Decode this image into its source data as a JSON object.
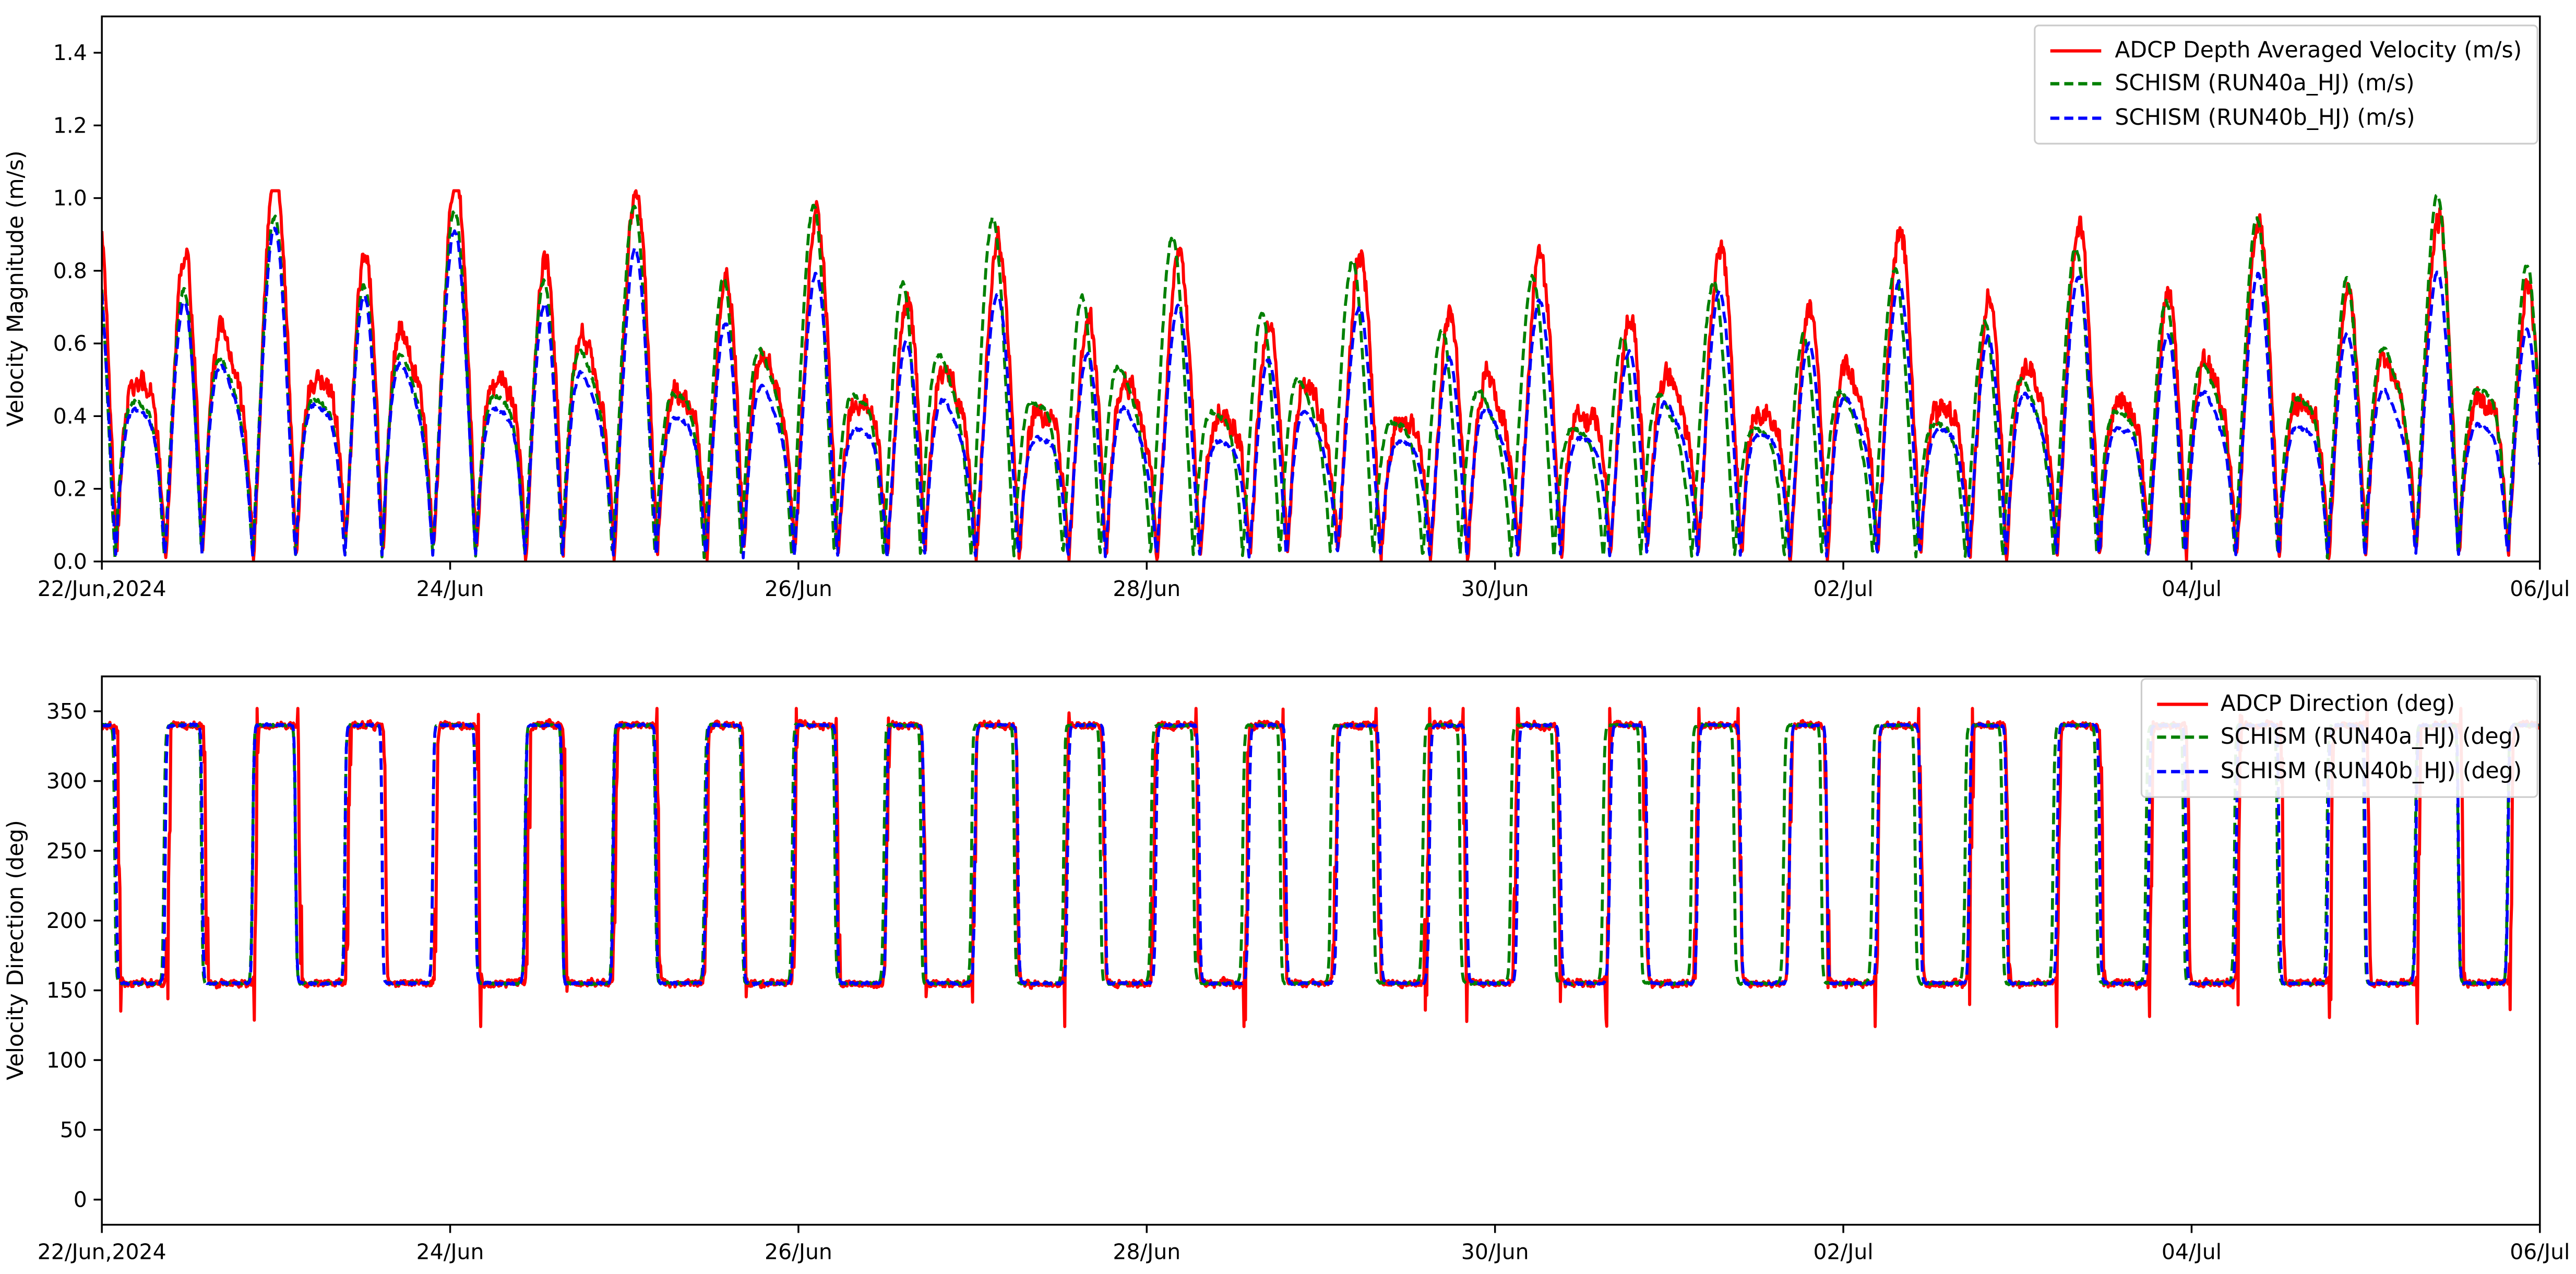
{
  "page": {
    "background": "#ffffff"
  },
  "colors": {
    "adcp": "#ff0000",
    "run40a": "#008000",
    "run40b": "#0000ff",
    "axis": "#000000",
    "legend_border": "#cccccc"
  },
  "chart_data": [
    {
      "id": "velocity-magnitude",
      "type": "line",
      "title": "",
      "xlabel": "",
      "ylabel": "Velocity Magnitude (m/s)",
      "ylim": [
        0.0,
        1.5
      ],
      "yticks": [
        0.0,
        0.2,
        0.4,
        0.6,
        0.8,
        1.0,
        1.2,
        1.4
      ],
      "ytick_labels": [
        "0.0",
        "0.2",
        "0.4",
        "0.6",
        "0.8",
        "1.0",
        "1.2",
        "1.4"
      ],
      "x_days": 14,
      "xticks_days": [
        0,
        2,
        4,
        6,
        8,
        10,
        12,
        14
      ],
      "xtick_labels": [
        "22/Jun,2024",
        "24/Jun",
        "26/Jun",
        "28/Jun",
        "30/Jun",
        "02/Jul",
        "04/Jul",
        "06/Jul"
      ],
      "grid": false,
      "legend_position": "upper right",
      "legend": [
        {
          "label": "ADCP Depth Averaged Velocity (m/s)",
          "color": "#ff0000",
          "dash": "solid"
        },
        {
          "label": "SCHISM (RUN40a_HJ) (m/s)",
          "color": "#008000",
          "dash": "dashed"
        },
        {
          "label": "SCHISM (RUN40b_HJ) (m/s)",
          "color": "#0000ff",
          "dash": "dashed"
        }
      ],
      "signal": {
        "kind": "semidiurnal_tidal_current_magnitude",
        "tidal_period_hours": 12.42,
        "duration_hours": 336,
        "peak_velocity_range_ms": [
          0.45,
          0.98
        ],
        "slack_velocity_ms": 0.02,
        "series": [
          {
            "name": "ADCP Depth Averaged Velocity",
            "amplitude_scale": 1.0,
            "phase_offset": 0.0,
            "noise_level": 0.028,
            "seed": 7
          },
          {
            "name": "SCHISM RUN40a_HJ",
            "amplitude_scale": 0.97,
            "phase_offset": 0.3,
            "noise_level": 0.006,
            "seed": 23
          },
          {
            "name": "SCHISM RUN40b_HJ",
            "amplitude_scale": 0.84,
            "phase_offset": 0.06,
            "noise_level": 0.005,
            "seed": 51
          }
        ]
      }
    },
    {
      "id": "velocity-direction",
      "type": "line",
      "title": "",
      "xlabel": "",
      "ylabel": "Velocity Direction (deg)",
      "ylim": [
        -18,
        375
      ],
      "yticks": [
        0,
        50,
        100,
        150,
        200,
        250,
        300,
        350
      ],
      "ytick_labels": [
        "0",
        "50",
        "100",
        "150",
        "200",
        "250",
        "300",
        "350"
      ],
      "x_days": 14,
      "xticks_days": [
        0,
        2,
        4,
        6,
        8,
        10,
        12,
        14
      ],
      "xtick_labels": [
        "22/Jun,2024",
        "24/Jun",
        "26/Jun",
        "28/Jun",
        "30/Jun",
        "02/Jul",
        "04/Jul",
        "06/Jul"
      ],
      "grid": false,
      "legend_position": "upper right",
      "legend": [
        {
          "label": "ADCP Direction (deg)",
          "color": "#ff0000",
          "dash": "solid"
        },
        {
          "label": "SCHISM (RUN40a_HJ) (deg)",
          "color": "#008000",
          "dash": "dashed"
        },
        {
          "label": "SCHISM (RUN40b_HJ) (deg)",
          "color": "#0000ff",
          "dash": "dashed"
        }
      ],
      "signal": {
        "kind": "semidiurnal_tidal_current_direction",
        "tidal_period_hours": 12.42,
        "duration_hours": 336,
        "flood_direction_deg": 340,
        "ebb_direction_deg": 155,
        "series": [
          {
            "name": "ADCP Direction",
            "phase_offset": 0.0,
            "noise_level_deg": 2.6,
            "seed": 11
          },
          {
            "name": "SCHISM RUN40a_HJ",
            "phase_offset": 0.3,
            "noise_level_deg": 0.8,
            "seed": 29
          },
          {
            "name": "SCHISM RUN40b_HJ",
            "phase_offset": 0.06,
            "noise_level_deg": 0.8,
            "seed": 57
          }
        ]
      }
    }
  ]
}
